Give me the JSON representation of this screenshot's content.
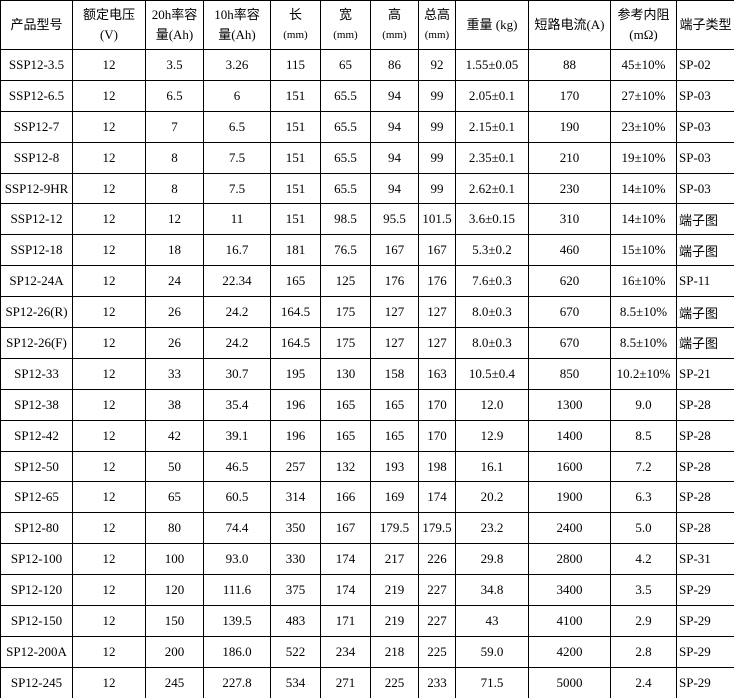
{
  "table": {
    "header": [
      [
        "产品型号"
      ],
      [
        "额定电压",
        "(V)"
      ],
      [
        "20h率容",
        "量(Ah)"
      ],
      [
        "10h率容",
        "量(Ah)"
      ],
      [
        "长",
        "(mm)"
      ],
      [
        "宽",
        "(mm)"
      ],
      [
        "高",
        "(mm)"
      ],
      [
        "总高",
        "(mm)"
      ],
      [
        "重量 (kg)"
      ],
      [
        "短路电流(A)"
      ],
      [
        "参考内阻",
        "(mΩ)"
      ],
      [
        "端子类型"
      ]
    ],
    "rows": [
      [
        "SSP12-3.5",
        "12",
        "3.5",
        "3.26",
        "115",
        "65",
        "86",
        "92",
        "1.55±0.05",
        "88",
        "45±10%",
        "SP-02"
      ],
      [
        "SSP12-6.5",
        "12",
        "6.5",
        "6",
        "151",
        "65.5",
        "94",
        "99",
        "2.05±0.1",
        "170",
        "27±10%",
        "SP-03"
      ],
      [
        "SSP12-7",
        "12",
        "7",
        "6.5",
        "151",
        "65.5",
        "94",
        "99",
        "2.15±0.1",
        "190",
        "23±10%",
        "SP-03"
      ],
      [
        "SSP12-8",
        "12",
        "8",
        "7.5",
        "151",
        "65.5",
        "94",
        "99",
        "2.35±0.1",
        "210",
        "19±10%",
        "SP-03"
      ],
      [
        "SSP12-9HR",
        "12",
        "8",
        "7.5",
        "151",
        "65.5",
        "94",
        "99",
        "2.62±0.1",
        "230",
        "14±10%",
        "SP-03"
      ],
      [
        "SSP12-12",
        "12",
        "12",
        "11",
        "151",
        "98.5",
        "95.5",
        "101.5",
        "3.6±0.15",
        "310",
        "14±10%",
        "端子图"
      ],
      [
        "SSP12-18",
        "12",
        "18",
        "16.7",
        "181",
        "76.5",
        "167",
        "167",
        "5.3±0.2",
        "460",
        "15±10%",
        "端子图"
      ],
      [
        "SP12-24A",
        "12",
        "24",
        "22.34",
        "165",
        "125",
        "176",
        "176",
        "7.6±0.3",
        "620",
        "16±10%",
        "SP-11"
      ],
      [
        "SP12-26(R)",
        "12",
        "26",
        "24.2",
        "164.5",
        "175",
        "127",
        "127",
        "8.0±0.3",
        "670",
        "8.5±10%",
        "端子图"
      ],
      [
        "SP12-26(F)",
        "12",
        "26",
        "24.2",
        "164.5",
        "175",
        "127",
        "127",
        "8.0±0.3",
        "670",
        "8.5±10%",
        "端子图"
      ],
      [
        "SP12-33",
        "12",
        "33",
        "30.7",
        "195",
        "130",
        "158",
        "163",
        "10.5±0.4",
        "850",
        "10.2±10%",
        "SP-21"
      ],
      [
        "SP12-38",
        "12",
        "38",
        "35.4",
        "196",
        "165",
        "165",
        "170",
        "12.0",
        "1300",
        "9.0",
        "SP-28"
      ],
      [
        "SP12-42",
        "12",
        "42",
        "39.1",
        "196",
        "165",
        "165",
        "170",
        "12.9",
        "1400",
        "8.5",
        "SP-28"
      ],
      [
        "SP12-50",
        "12",
        "50",
        "46.5",
        "257",
        "132",
        "193",
        "198",
        "16.1",
        "1600",
        "7.2",
        "SP-28"
      ],
      [
        "SP12-65",
        "12",
        "65",
        "60.5",
        "314",
        "166",
        "169",
        "174",
        "20.2",
        "1900",
        "6.3",
        "SP-28"
      ],
      [
        "SP12-80",
        "12",
        "80",
        "74.4",
        "350",
        "167",
        "179.5",
        "179.5",
        "23.2",
        "2400",
        "5.0",
        "SP-28"
      ],
      [
        "SP12-100",
        "12",
        "100",
        "93.0",
        "330",
        "174",
        "217",
        "226",
        "29.8",
        "2800",
        "4.2",
        "SP-31"
      ],
      [
        "SP12-120",
        "12",
        "120",
        "111.6",
        "375",
        "174",
        "219",
        "227",
        "34.8",
        "3400",
        "3.5",
        "SP-29"
      ],
      [
        "SP12-150",
        "12",
        "150",
        "139.5",
        "483",
        "171",
        "219",
        "227",
        "43",
        "4100",
        "2.9",
        "SP-29"
      ],
      [
        "SP12-200A",
        "12",
        "200",
        "186.0",
        "522",
        "234",
        "218",
        "225",
        "59.0",
        "4200",
        "2.8",
        "SP-29"
      ],
      [
        "SP12-245",
        "12",
        "245",
        "227.8",
        "534",
        "271",
        "225",
        "233",
        "71.5",
        "5000",
        "2.4",
        "SP-29"
      ]
    ]
  }
}
